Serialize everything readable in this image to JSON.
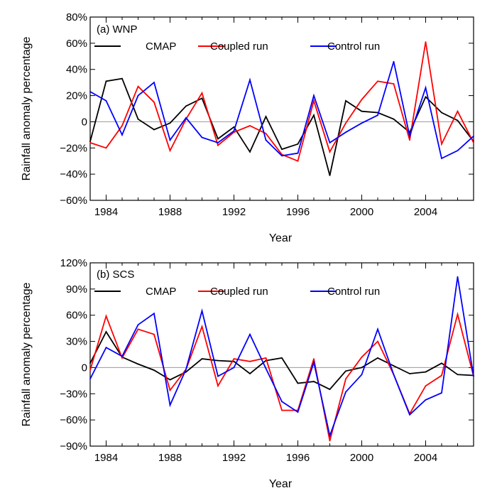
{
  "chart_data": [
    {
      "type": "line",
      "panel_label": "(a)  WNP",
      "xlabel": "Year",
      "ylabel": "Rainfall anomaly percentage",
      "xlim": [
        1983,
        2007
      ],
      "ylim": [
        -60,
        80
      ],
      "x_ticks": [
        1984,
        1988,
        1992,
        1996,
        2000,
        2004
      ],
      "y_ticks": [
        -60,
        -40,
        -20,
        0,
        20,
        40,
        60,
        80
      ],
      "y_tick_labels": [
        "−60%",
        "−40%",
        "−20%",
        "0",
        "20%",
        "40%",
        "60%",
        "80%"
      ],
      "legend_position": "top",
      "zero_line": true,
      "x": [
        1983,
        1984,
        1985,
        1986,
        1987,
        1988,
        1989,
        1990,
        1991,
        1992,
        1993,
        1994,
        1995,
        1996,
        1997,
        1998,
        1999,
        2000,
        2001,
        2002,
        2003,
        2004,
        2005,
        2006,
        2007
      ],
      "series": [
        {
          "name": "CMAP",
          "color": "#000000",
          "values": [
            -15,
            31,
            33,
            2,
            -6,
            -1,
            12,
            18,
            -13,
            -4,
            -23,
            4,
            -21,
            -17,
            5,
            -41,
            16,
            8,
            7,
            2,
            -8,
            19,
            7,
            1,
            -15
          ]
        },
        {
          "name": "Coupled run",
          "color": "#ff0000",
          "values": [
            -16,
            -20,
            -3,
            27,
            15,
            -22,
            2,
            22,
            -18,
            -8,
            -3,
            -9,
            -25,
            -30,
            16,
            -23,
            -1,
            17,
            31,
            29,
            -14,
            61,
            -17,
            8,
            -16
          ]
        },
        {
          "name": "Control run",
          "color": "#0000ff",
          "values": [
            23,
            16,
            -10,
            20,
            30,
            -14,
            3,
            -12,
            -16,
            -7,
            32,
            -14,
            -26,
            -24,
            20,
            -16,
            -8,
            -1,
            5,
            46,
            -11,
            26,
            -28,
            -22,
            -11
          ]
        }
      ]
    },
    {
      "type": "line",
      "panel_label": "(b)  SCS",
      "xlabel": "Year",
      "ylabel": "Rainfall anomaly percentage",
      "xlim": [
        1983,
        2007
      ],
      "ylim": [
        -90,
        120
      ],
      "x_ticks": [
        1984,
        1988,
        1992,
        1996,
        2000,
        2004
      ],
      "y_ticks": [
        -90,
        -60,
        -30,
        0,
        30,
        60,
        90,
        120
      ],
      "y_tick_labels": [
        "−90%",
        "−60%",
        "−30%",
        "0",
        "30%",
        "60%",
        "90%",
        "120%"
      ],
      "legend_position": "top",
      "zero_line": true,
      "x": [
        1983,
        1984,
        1985,
        1986,
        1987,
        1988,
        1989,
        1990,
        1991,
        1992,
        1993,
        1994,
        1995,
        1996,
        1997,
        1998,
        1999,
        2000,
        2001,
        2002,
        2003,
        2004,
        2005,
        2006,
        2007
      ],
      "series": [
        {
          "name": "CMAP",
          "color": "#000000",
          "values": [
            5,
            41,
            12,
            4,
            -3,
            -14,
            -5,
            10,
            8,
            7,
            -7,
            8,
            11,
            -18,
            -16,
            -25,
            -4,
            0,
            11,
            2,
            -7,
            -5,
            5,
            -8,
            -9
          ]
        },
        {
          "name": "Coupled run",
          "color": "#ff0000",
          "values": [
            -3,
            59,
            11,
            44,
            38,
            -26,
            -2,
            47,
            -21,
            10,
            7,
            11,
            -49,
            -49,
            10,
            -84,
            -13,
            12,
            30,
            -8,
            -53,
            -21,
            -9,
            61,
            -10
          ]
        },
        {
          "name": "Control run",
          "color": "#0000ff",
          "values": [
            -13,
            23,
            13,
            49,
            62,
            -43,
            -2,
            65,
            -10,
            0,
            38,
            -1,
            -39,
            -51,
            6,
            -78,
            -28,
            -8,
            44,
            -8,
            -54,
            -37,
            -29,
            104,
            -10
          ]
        }
      ]
    }
  ]
}
